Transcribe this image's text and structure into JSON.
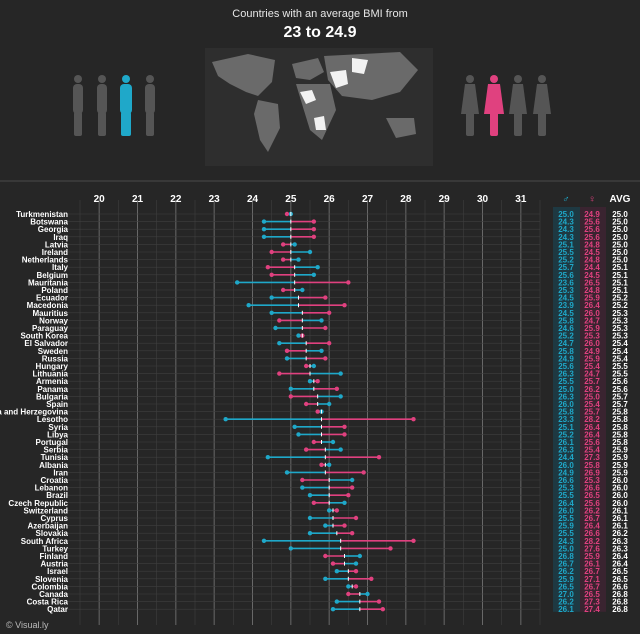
{
  "header": {
    "title": "Countries with an average BMI from",
    "subtitle": "23 to 24.9"
  },
  "footer": {
    "source": "© Visual.ly"
  },
  "colors": {
    "male": "#1fa8c9",
    "female": "#e0417f",
    "background": "#262626",
    "grid": "#5a5a5a"
  },
  "icons": {
    "male_figures": "male-silhouette-icon",
    "female_figures": "female-silhouette-icon",
    "map": "world-map-icon"
  },
  "chart_data": {
    "type": "dumbbell",
    "title": "Countries with an average BMI from 23 to 24.9",
    "x_ticks": [
      20,
      21,
      22,
      23,
      24,
      25,
      26,
      27,
      28,
      29,
      30,
      31
    ],
    "xlim": [
      19.5,
      31.5
    ],
    "columns": {
      "male": "♂",
      "female": "♀",
      "avg": "AVG"
    },
    "countries": [
      "Turkmenistan",
      "Botswana",
      "Georgia",
      "Iraq",
      "Latvia",
      "Ireland",
      "Netherlands",
      "Italy",
      "Belgium",
      "Mauritania",
      "Poland",
      "Ecuador",
      "Macedonia",
      "Mauritius",
      "Norway",
      "Paraguay",
      "South Korea",
      "El Salvador",
      "Sweden",
      "Russia",
      "Hungary",
      "Lithuania",
      "Armenia",
      "Panama",
      "Bulgaria",
      "Spain",
      "Bosnia and Herzegovina",
      "Lesotho",
      "Syria",
      "Libya",
      "Portugal",
      "Serbia",
      "Tunisia",
      "Albania",
      "Iran",
      "Croatia",
      "Lebanon",
      "Brazil",
      "Czech Republic",
      "Switzerland",
      "Cyprus",
      "Azerbaijan",
      "Slovakia",
      "South Africa",
      "Turkey",
      "Finland",
      "Austria",
      "Israel",
      "Slovenia",
      "Colombia",
      "Canada",
      "Costa Rica",
      "Qatar"
    ],
    "series": [
      {
        "name": "male",
        "values": [
          25.0,
          24.3,
          24.3,
          24.3,
          25.1,
          25.5,
          25.2,
          25.7,
          25.6,
          23.6,
          25.3,
          24.5,
          23.9,
          24.5,
          25.8,
          24.6,
          25.2,
          24.7,
          25.8,
          24.9,
          25.6,
          26.3,
          25.5,
          25.0,
          26.3,
          26.0,
          25.8,
          23.3,
          25.1,
          25.2,
          26.1,
          26.3,
          24.4,
          26.0,
          24.9,
          26.6,
          25.3,
          25.5,
          26.4,
          26.0,
          25.5,
          25.9,
          25.5,
          24.3,
          25.0,
          26.8,
          26.7,
          26.2,
          25.9,
          26.5,
          27.0,
          26.2,
          26.1
        ]
      },
      {
        "name": "female",
        "values": [
          24.9,
          25.6,
          25.6,
          25.6,
          24.8,
          24.5,
          24.8,
          24.4,
          24.5,
          26.5,
          24.8,
          25.9,
          26.4,
          26.0,
          24.7,
          25.9,
          25.3,
          26.0,
          24.9,
          25.9,
          25.4,
          24.7,
          25.7,
          26.2,
          25.0,
          25.4,
          25.7,
          28.2,
          26.4,
          26.4,
          25.6,
          25.4,
          27.3,
          25.8,
          26.9,
          25.3,
          26.6,
          26.5,
          25.6,
          26.2,
          26.7,
          26.4,
          26.6,
          28.2,
          27.6,
          25.9,
          26.1,
          26.7,
          27.1,
          26.7,
          26.5,
          27.3,
          27.4
        ]
      },
      {
        "name": "avg",
        "values": [
          25.0,
          25.0,
          25.0,
          25.0,
          25.0,
          25.0,
          25.0,
          25.1,
          25.1,
          25.1,
          25.1,
          25.2,
          25.2,
          25.3,
          25.3,
          25.3,
          25.3,
          25.4,
          25.4,
          25.4,
          25.5,
          25.5,
          25.6,
          25.6,
          25.7,
          25.7,
          25.8,
          25.8,
          25.8,
          25.8,
          25.8,
          25.9,
          25.9,
          25.9,
          25.9,
          26.0,
          26.0,
          26.0,
          26.0,
          26.1,
          26.1,
          26.1,
          26.2,
          26.3,
          26.3,
          26.4,
          26.4,
          26.5,
          26.5,
          26.6,
          26.8,
          26.8,
          26.8
        ]
      }
    ]
  }
}
